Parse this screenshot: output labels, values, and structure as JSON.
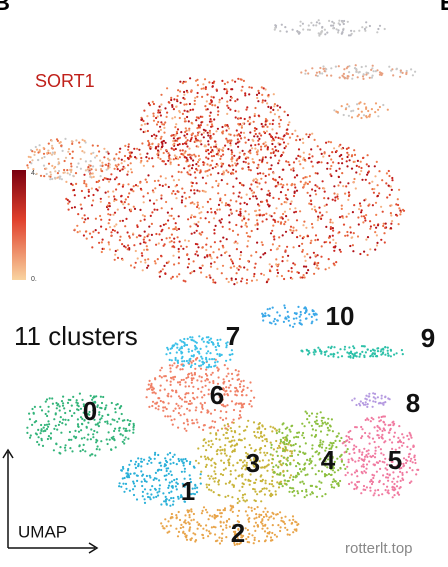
{
  "panel_labels": [
    "B",
    "E"
  ],
  "top_panel": {
    "gene": "SORT1",
    "colorbar": {
      "max_label": "4.",
      "min_label": "0."
    }
  },
  "bottom_panel": {
    "title": "11 clusters",
    "axis_label": "UMAP",
    "clusters": [
      "0",
      "1",
      "2",
      "3",
      "4",
      "5",
      "6",
      "7",
      "8",
      "9",
      "10"
    ]
  },
  "watermark": "rotterlt.top"
}
